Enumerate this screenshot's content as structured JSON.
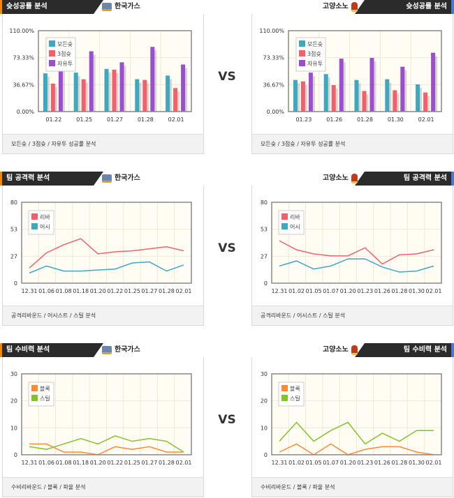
{
  "vs_label": "VS",
  "colors": {
    "assist_teal": "#3ea8c0",
    "rebound_red": "#f2606e",
    "free_purple": "#9b4fd0",
    "block_orange": "#ff8a33",
    "steal_green": "#80c526",
    "header_dark": "#2b2b2b"
  },
  "panels": [
    {
      "title": "슛성공률 분석",
      "team": "한국가스",
      "team_icon": "kogas-logo-icon",
      "footer": "모든슛 / 3점슛 / 자유투 성공률 분석"
    },
    {
      "title": "슛성공률 분석",
      "team": "고양소노",
      "team_icon": "sono-logo-icon",
      "footer": "모든슛 / 3점슛 / 자유투 성공률 분석"
    },
    {
      "title": "팀 공격력 분석",
      "team": "한국가스",
      "team_icon": "kogas-logo-icon",
      "footer": "공격리바운드 / 어시스트 / 스틸 분석"
    },
    {
      "title": "팀 공격력 분석",
      "team": "고양소노",
      "team_icon": "sono-logo-icon",
      "footer": "공격리바운드 / 어시스트 / 스틸 분석"
    },
    {
      "title": "팀 수비력 분석",
      "team": "한국가스",
      "team_icon": "kogas-logo-icon",
      "footer": "수비리바운드 / 블록 / 파울 분석"
    },
    {
      "title": "팀 수비력 분석",
      "team": "고양소노",
      "team_icon": "sono-logo-icon",
      "footer": "수비리바운드 / 블록 / 파울 분석"
    }
  ],
  "chart_data": [
    {
      "type": "bar",
      "categories": [
        "01.22",
        "01.25",
        "01.27",
        "01.28",
        "02.01"
      ],
      "yticks": [
        "110.00%",
        "73.33%",
        "36.67%",
        "0.00%"
      ],
      "ylim": [
        0,
        110
      ],
      "grid": true,
      "legend": "top-left",
      "series": [
        {
          "name": "모든슛",
          "color": "#3ea8c0",
          "values": [
            52,
            53,
            58,
            44,
            49
          ]
        },
        {
          "name": "3점슛",
          "color": "#f2606e",
          "values": [
            38,
            44,
            57,
            43,
            32
          ]
        },
        {
          "name": "자유투",
          "color": "#9b4fd0",
          "values": [
            60,
            82,
            67,
            88,
            64
          ]
        }
      ]
    },
    {
      "type": "bar",
      "categories": [
        "01.23",
        "01.26",
        "01.28",
        "01.30",
        "02.01"
      ],
      "yticks": [
        "110.00%",
        "73.33%",
        "36.67%",
        "0.00%"
      ],
      "ylim": [
        0,
        110
      ],
      "grid": true,
      "legend": "top-left",
      "series": [
        {
          "name": "모든슛",
          "color": "#3ea8c0",
          "values": [
            43,
            51,
            43,
            44,
            37
          ]
        },
        {
          "name": "3점슛",
          "color": "#f2606e",
          "values": [
            41,
            36,
            28,
            29,
            26
          ]
        },
        {
          "name": "자유투",
          "color": "#9b4fd0",
          "values": [
            53,
            72,
            73,
            61,
            80
          ]
        }
      ]
    },
    {
      "type": "line",
      "categories": [
        "12.31",
        "01.06",
        "01.08",
        "01.18",
        "01.20",
        "01.22",
        "01.25",
        "01.27",
        "01.28",
        "02.01"
      ],
      "yticks": [
        "80",
        "53",
        "27",
        "0"
      ],
      "ylim": [
        0,
        80
      ],
      "grid": true,
      "legend": "top-left",
      "series": [
        {
          "name": "리바",
          "color": "#f2606e",
          "values": [
            15,
            30,
            38,
            44,
            29,
            31,
            32,
            34,
            36,
            32
          ]
        },
        {
          "name": "어시",
          "color": "#3ea8c0",
          "values": [
            10,
            17,
            12,
            12,
            13,
            14,
            20,
            21,
            12,
            18
          ]
        }
      ]
    },
    {
      "type": "line",
      "categories": [
        "12.31",
        "01.02",
        "01.05",
        "01.07",
        "01.20",
        "01.23",
        "01.26",
        "01.28",
        "01.30",
        "02.01"
      ],
      "yticks": [
        "80",
        "53",
        "27",
        "0"
      ],
      "ylim": [
        0,
        80
      ],
      "grid": true,
      "legend": "top-left",
      "series": [
        {
          "name": "리바",
          "color": "#f2606e",
          "values": [
            42,
            33,
            29,
            27,
            27,
            35,
            19,
            28,
            29,
            33
          ]
        },
        {
          "name": "어시",
          "color": "#3ea8c0",
          "values": [
            17,
            22,
            14,
            17,
            24,
            24,
            16,
            11,
            12,
            17
          ]
        }
      ]
    },
    {
      "type": "line",
      "categories": [
        "12.31",
        "01.06",
        "01.08",
        "01.18",
        "01.20",
        "01.22",
        "01.25",
        "01.27",
        "01.28",
        "02.01"
      ],
      "yticks": [
        "30",
        "20",
        "10",
        "0"
      ],
      "ylim": [
        0,
        30
      ],
      "grid": true,
      "legend": "top-left",
      "series": [
        {
          "name": "블록",
          "color": "#ff8a33",
          "values": [
            4,
            4,
            1,
            1,
            0,
            3,
            2,
            3,
            1,
            1
          ]
        },
        {
          "name": "스틸",
          "color": "#80c526",
          "values": [
            3,
            2,
            4,
            6,
            4,
            7,
            5,
            6,
            5,
            1
          ]
        }
      ]
    },
    {
      "type": "line",
      "categories": [
        "12.31",
        "01.02",
        "01.05",
        "01.07",
        "01.20",
        "01.23",
        "01.26",
        "01.28",
        "01.30",
        "02.01"
      ],
      "yticks": [
        "30",
        "20",
        "10",
        "0"
      ],
      "ylim": [
        0,
        30
      ],
      "grid": true,
      "legend": "top-left",
      "series": [
        {
          "name": "블록",
          "color": "#ff8a33",
          "values": [
            1,
            4,
            0,
            4,
            0,
            2,
            3,
            3,
            1,
            0
          ]
        },
        {
          "name": "스틸",
          "color": "#80c526",
          "values": [
            5,
            12,
            5,
            9,
            12,
            4,
            8,
            5,
            9,
            9
          ]
        }
      ]
    }
  ]
}
